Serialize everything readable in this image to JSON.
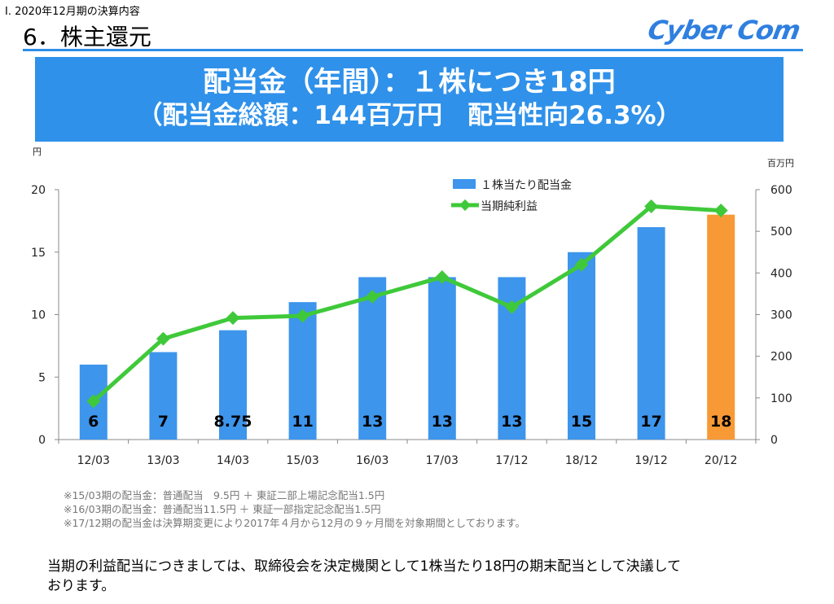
{
  "header": {
    "section": "Ⅰ. 2020年12月期の決算内容",
    "title": "6．株主還元",
    "logo": "Cyber Com"
  },
  "banner": {
    "line1": "配当金（年間）：１株につき18円",
    "line2": "（配当金総額：144百万円　配当性向26.3%）"
  },
  "chart_data": {
    "type": "bar",
    "categories": [
      "12/03",
      "13/03",
      "14/03",
      "15/03",
      "16/03",
      "17/03",
      "17/12",
      "18/12",
      "19/12",
      "20/12"
    ],
    "series": [
      {
        "name": "１株当たり配当金",
        "axis": "left",
        "type": "bar",
        "values": [
          6,
          7,
          8.75,
          11,
          13,
          13,
          13,
          15,
          17,
          18
        ],
        "labels": [
          "6",
          "7",
          "8.75",
          "11",
          "13",
          "13",
          "13",
          "15",
          "17",
          "18"
        ],
        "color": "#3d95ec",
        "highlight_color": "#f79a35",
        "highlight_index": 9
      },
      {
        "name": "当期純利益",
        "axis": "right",
        "type": "line",
        "values": [
          92,
          242,
          292,
          297,
          343,
          390,
          318,
          420,
          560,
          550
        ],
        "color": "#3fc93a"
      }
    ],
    "left_axis": {
      "unit": "円",
      "ylim": [
        0,
        20
      ],
      "ticks": [
        0,
        5,
        10,
        15,
        20
      ]
    },
    "right_axis": {
      "unit": "百万円",
      "ylim": [
        0,
        600
      ],
      "ticks": [
        0,
        100,
        200,
        300,
        400,
        500,
        600
      ]
    },
    "legend_position": "top-center",
    "grid": false
  },
  "notes": [
    "※15/03期の配当金：普通配当　9.5円 ＋ 東証二部上場記念配当1.5円",
    "※16/03期の配当金：普通配当11.5円 ＋ 東証一部指定記念配当1.5円",
    "※17/12期の配当金は決算期変更により2017年４月から12月の９ヶ月間を対象期間としております。"
  ],
  "conclusion": [
    "当期の利益配当につきましては、取締役会を決定機関として1株当たり18円の期末配当として決議して",
    "おります。"
  ]
}
